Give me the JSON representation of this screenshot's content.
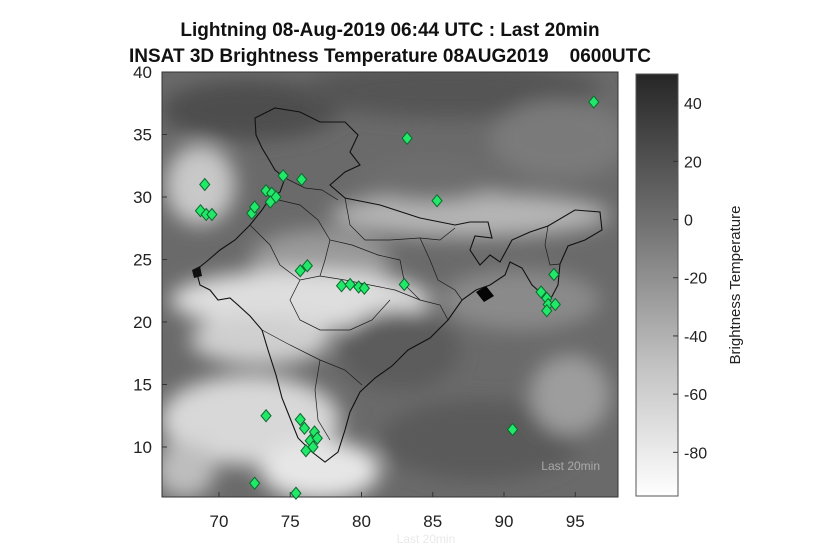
{
  "title": {
    "line1": "Lightning 08-Aug-2019 06:44 UTC : Last 20min",
    "line2": "INSAT 3D Brightness Temperature 08AUG2019    0600UTC"
  },
  "map": {
    "lon_range": [
      66,
      98
    ],
    "lat_range": [
      6,
      40
    ],
    "x_ticks": [
      70,
      75,
      80,
      85,
      90,
      95
    ],
    "y_ticks": [
      10,
      15,
      20,
      25,
      30,
      35,
      40
    ]
  },
  "colorbar": {
    "label": "Brightness Temperature",
    "range": [
      -95,
      50
    ],
    "ticks": [
      40,
      20,
      0,
      -20,
      -40,
      -60,
      -80
    ],
    "colors": {
      "top": "#262626",
      "bottom": "#ffffff"
    }
  },
  "watermark": "Last 20min",
  "marker_color": "#22e86a",
  "lightning_strikes": [
    {
      "lon": 69.0,
      "lat": 31.0
    },
    {
      "lon": 68.7,
      "lat": 28.9
    },
    {
      "lon": 69.1,
      "lat": 28.6
    },
    {
      "lon": 69.5,
      "lat": 28.6
    },
    {
      "lon": 72.3,
      "lat": 28.7
    },
    {
      "lon": 72.5,
      "lat": 29.2
    },
    {
      "lon": 73.3,
      "lat": 30.5
    },
    {
      "lon": 73.7,
      "lat": 30.3
    },
    {
      "lon": 74.0,
      "lat": 30.0
    },
    {
      "lon": 73.6,
      "lat": 29.6
    },
    {
      "lon": 74.5,
      "lat": 31.7
    },
    {
      "lon": 75.8,
      "lat": 31.4
    },
    {
      "lon": 83.2,
      "lat": 34.7
    },
    {
      "lon": 85.3,
      "lat": 29.7
    },
    {
      "lon": 96.3,
      "lat": 37.6
    },
    {
      "lon": 75.7,
      "lat": 24.1
    },
    {
      "lon": 76.2,
      "lat": 24.5
    },
    {
      "lon": 78.6,
      "lat": 22.9
    },
    {
      "lon": 79.2,
      "lat": 23.0
    },
    {
      "lon": 79.8,
      "lat": 22.8
    },
    {
      "lon": 80.2,
      "lat": 22.7
    },
    {
      "lon": 83.0,
      "lat": 23.0
    },
    {
      "lon": 93.5,
      "lat": 23.8
    },
    {
      "lon": 92.6,
      "lat": 22.4
    },
    {
      "lon": 93.0,
      "lat": 21.9
    },
    {
      "lon": 93.1,
      "lat": 21.4
    },
    {
      "lon": 93.0,
      "lat": 20.9
    },
    {
      "lon": 93.6,
      "lat": 21.4
    },
    {
      "lon": 73.3,
      "lat": 12.5
    },
    {
      "lon": 75.7,
      "lat": 12.2
    },
    {
      "lon": 76.0,
      "lat": 11.5
    },
    {
      "lon": 76.7,
      "lat": 11.2
    },
    {
      "lon": 76.4,
      "lat": 10.5
    },
    {
      "lon": 76.9,
      "lat": 10.7
    },
    {
      "lon": 76.6,
      "lat": 10.0
    },
    {
      "lon": 76.1,
      "lat": 9.7
    },
    {
      "lon": 90.6,
      "lat": 11.4
    },
    {
      "lon": 72.5,
      "lat": 7.1
    },
    {
      "lon": 75.4,
      "lat": 6.3
    }
  ]
}
